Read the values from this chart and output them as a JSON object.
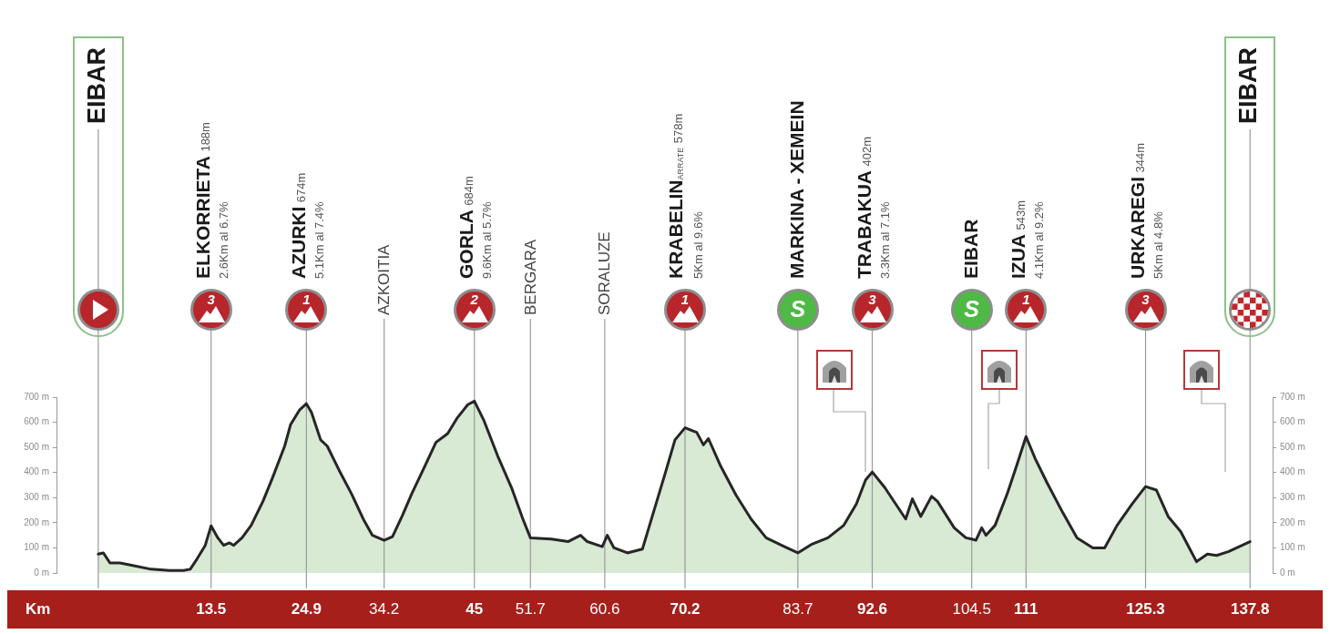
{
  "chart_data": {
    "type": "area",
    "xlabel": "Km",
    "color": "#d8e9d4",
    "x": [
      0,
      0.6,
      1.4,
      2.6,
      4.1,
      6.3,
      8.5,
      10.2,
      11,
      11.8,
      12.8,
      13.5,
      14.3,
      15,
      15.7,
      16.2,
      17.2,
      18.3,
      19.7,
      20.8,
      22.3,
      23,
      24.1,
      24.9,
      25.5,
      26.6,
      27.4,
      28.8,
      30.3,
      31.7,
      32.8,
      34.2,
      35.2,
      36.4,
      37.5,
      39,
      40.4,
      41.8,
      42.9,
      44.2,
      45,
      46.1,
      47.8,
      49.5,
      50.8,
      51.7,
      54.2,
      56.2,
      57.7,
      58.5,
      60.3,
      60.9,
      61.7,
      63.3,
      65.1,
      66.5,
      67.9,
      69,
      70.2,
      71.6,
      72.4,
      73,
      74.4,
      76.3,
      78.1,
      79.9,
      82.1,
      83.7,
      85.4,
      87.3,
      89.2,
      90.7,
      91.8,
      92.6,
      94.1,
      96.6,
      97.4,
      98.4,
      99.7,
      100.4,
      102.4,
      103.8,
      104.5,
      105,
      105.7,
      106.2,
      107.3,
      108.8,
      109.9,
      111,
      112.1,
      113.5,
      115.4,
      117.1,
      119,
      120.4,
      121.9,
      123.7,
      125.3,
      126.6,
      128,
      129.5,
      130.6,
      131.4,
      132.7,
      133.8,
      135.2,
      137.8
    ],
    "values": [
      75,
      80,
      40,
      40,
      30,
      15,
      10,
      10,
      15,
      55,
      110,
      188,
      140,
      110,
      120,
      110,
      140,
      190,
      285,
      375,
      505,
      590,
      650,
      674,
      640,
      530,
      505,
      410,
      315,
      215,
      150,
      130,
      145,
      230,
      315,
      420,
      520,
      555,
      615,
      670,
      684,
      610,
      465,
      335,
      215,
      140,
      135,
      125,
      150,
      125,
      105,
      150,
      100,
      80,
      95,
      250,
      405,
      530,
      578,
      560,
      510,
      535,
      430,
      310,
      215,
      140,
      105,
      80,
      115,
      140,
      190,
      275,
      370,
      402,
      340,
      215,
      295,
      225,
      305,
      285,
      180,
      140,
      135,
      130,
      180,
      150,
      190,
      320,
      430,
      543,
      455,
      360,
      240,
      140,
      100,
      100,
      190,
      275,
      344,
      330,
      225,
      165,
      95,
      45,
      75,
      70,
      85,
      125
    ],
    "xlim": [
      -5,
      140.5
    ],
    "xticks": [
      13.5,
      24.9,
      34.2,
      45,
      51.7,
      60.6,
      70.2,
      83.7,
      92.6,
      104.5,
      111,
      125.3,
      137.8
    ],
    "ylim": [
      0,
      700
    ],
    "yticks": [
      {
        "value": 0,
        "label": "0 m"
      },
      {
        "value": 100,
        "label": "100 m"
      },
      {
        "value": 200,
        "label": "200 m"
      },
      {
        "value": 300,
        "label": "300 m"
      },
      {
        "value": 400,
        "label": "400 m"
      },
      {
        "value": 500,
        "label": "500 m"
      },
      {
        "value": 600,
        "label": "600 m"
      },
      {
        "value": 700,
        "label": "700 m"
      }
    ],
    "y2lim": [
      0,
      700
    ],
    "y2ticks": [
      {
        "value": 0,
        "label": "0 m"
      },
      {
        "value": 100,
        "label": "100 m"
      },
      {
        "value": 200,
        "label": "200 m"
      },
      {
        "value": 300,
        "label": "300 m"
      },
      {
        "value": 400,
        "label": "400 m"
      },
      {
        "value": 500,
        "label": "500 m"
      },
      {
        "value": 600,
        "label": "600 m"
      },
      {
        "value": 700,
        "label": "700 m"
      }
    ],
    "ref_lines": [
      {
        "axis": "x",
        "value": 0,
        "label": "EIBAR",
        "color": "#9a9a9a"
      },
      {
        "axis": "x",
        "value": 13.5,
        "label": "3\nELKORRIETA 188m\n2.6Km al 6.7%",
        "color": "#9a9a9a"
      },
      {
        "axis": "x",
        "value": 24.9,
        "label": "1\nAZURKI 674m\n5.1Km al 7.4%",
        "color": "#9a9a9a"
      },
      {
        "axis": "x",
        "value": 34.2,
        "label": "AZKOITIA",
        "color": "#9a9a9a"
      },
      {
        "axis": "x",
        "value": 45,
        "label": "2\nGORLA 684m\n9.6Km al 5.7%",
        "color": "#9a9a9a"
      },
      {
        "axis": "x",
        "value": 51.7,
        "label": "BERGARA",
        "color": "#9a9a9a"
      },
      {
        "axis": "x",
        "value": 60.6,
        "label": "SORALUZE",
        "color": "#9a9a9a"
      },
      {
        "axis": "x",
        "value": 70.2,
        "label": "1\nKRABELIN$_{ARRATE}$ 578m\n5Km al 9.6%",
        "color": "#9a9a9a"
      },
      {
        "axis": "x",
        "value": 83.7,
        "label": "S\nMARKINA - XEMEIN",
        "color": "#9a9a9a"
      },
      {
        "axis": "x",
        "value": 92.6,
        "label": "3\nTRABAKUA 402m\n3.3Km al 7.1%",
        "color": "#9a9a9a"
      },
      {
        "axis": "x",
        "value": 104.5,
        "label": "S\nEIBAR",
        "color": "#9a9a9a"
      },
      {
        "axis": "x",
        "value": 111,
        "label": "1\nIZUA 543m\n4.1Km al 9.2%",
        "color": "#9a9a9a"
      },
      {
        "axis": "x",
        "value": 125.3,
        "label": "3\nURKAREGI 344m\n5Km al 4.8%",
        "color": "#9a9a9a"
      },
      {
        "axis": "x",
        "value": 137.8,
        "label": "EIBAR",
        "color": "#9a9a9a"
      }
    ]
  }
}
